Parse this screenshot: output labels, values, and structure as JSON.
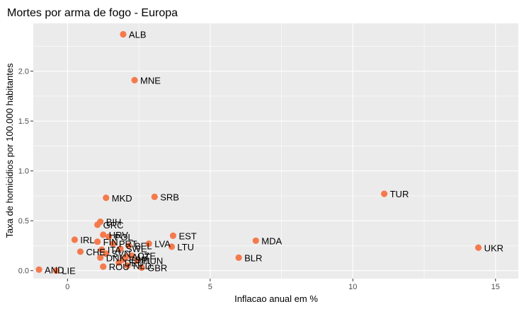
{
  "chart_data": {
    "type": "scatter",
    "title": "Mortes por arma de fogo - Europa",
    "xlabel": "Inflacao anual em %",
    "ylabel": "Taxa de homicidios por 100.000 habitantes",
    "xlim": [
      -1.2,
      15.8
    ],
    "ylim": [
      -0.08,
      2.48
    ],
    "x_ticks": [
      0,
      5,
      10,
      15
    ],
    "x_tick_labels": [
      "0",
      "5",
      "10",
      "15"
    ],
    "y_ticks": [
      0.0,
      0.5,
      1.0,
      1.5,
      2.0
    ],
    "y_tick_labels": [
      "0.0",
      "0.5",
      "1.0",
      "1.5",
      "2.0"
    ],
    "grid": true,
    "point_color": "#F47A4D",
    "panel_color": "#EBEBEB",
    "points": [
      {
        "label": "ALB",
        "x": 1.95,
        "y": 2.37
      },
      {
        "label": "MNE",
        "x": 2.35,
        "y": 1.91
      },
      {
        "label": "TUR",
        "x": 11.1,
        "y": 0.77
      },
      {
        "label": "SRB",
        "x": 3.05,
        "y": 0.74
      },
      {
        "label": "MKD",
        "x": 1.35,
        "y": 0.73
      },
      {
        "label": "BIH",
        "x": 1.15,
        "y": 0.49
      },
      {
        "label": "GRC",
        "x": 1.05,
        "y": 0.46
      },
      {
        "label": "EST",
        "x": 3.7,
        "y": 0.35
      },
      {
        "label": "MDA",
        "x": 6.6,
        "y": 0.3
      },
      {
        "label": "IRL",
        "x": 0.25,
        "y": 0.31
      },
      {
        "label": "FIN",
        "x": 1.05,
        "y": 0.29
      },
      {
        "label": "HRV",
        "x": 1.25,
        "y": 0.36
      },
      {
        "label": "POL",
        "x": 1.45,
        "y": 0.34
      },
      {
        "label": "LVA",
        "x": 2.85,
        "y": 0.27
      },
      {
        "label": "LTU",
        "x": 3.65,
        "y": 0.24
      },
      {
        "label": "UKR",
        "x": 14.4,
        "y": 0.23
      },
      {
        "label": "SWE",
        "x": 1.85,
        "y": 0.22
      },
      {
        "label": "CHE",
        "x": 0.45,
        "y": 0.19
      },
      {
        "label": "SVN",
        "x": 1.35,
        "y": 0.17
      },
      {
        "label": "DNK",
        "x": 1.15,
        "y": 0.13
      },
      {
        "label": "AUT",
        "x": 2.05,
        "y": 0.14
      },
      {
        "label": "BLR",
        "x": 6.0,
        "y": 0.13
      },
      {
        "label": "ROU",
        "x": 1.25,
        "y": 0.04
      },
      {
        "label": "GBR",
        "x": 2.6,
        "y": 0.03
      },
      {
        "label": "AND",
        "x": -1.0,
        "y": 0.01
      },
      {
        "label": "LIE",
        "x": -0.4,
        "y": 0.0
      },
      {
        "label": "NLD",
        "x": 2.1,
        "y": 0.05
      },
      {
        "label": "BEL",
        "x": 2.15,
        "y": 0.25
      },
      {
        "label": "DEU",
        "x": 1.8,
        "y": 0.08
      },
      {
        "label": "PRT",
        "x": 1.6,
        "y": 0.27
      },
      {
        "label": "ESP",
        "x": 1.95,
        "y": 0.11
      },
      {
        "label": "CZE",
        "x": 2.25,
        "y": 0.15
      },
      {
        "label": "HUN",
        "x": 2.45,
        "y": 0.1
      },
      {
        "label": "ITA",
        "x": 1.2,
        "y": 0.21
      }
    ]
  }
}
